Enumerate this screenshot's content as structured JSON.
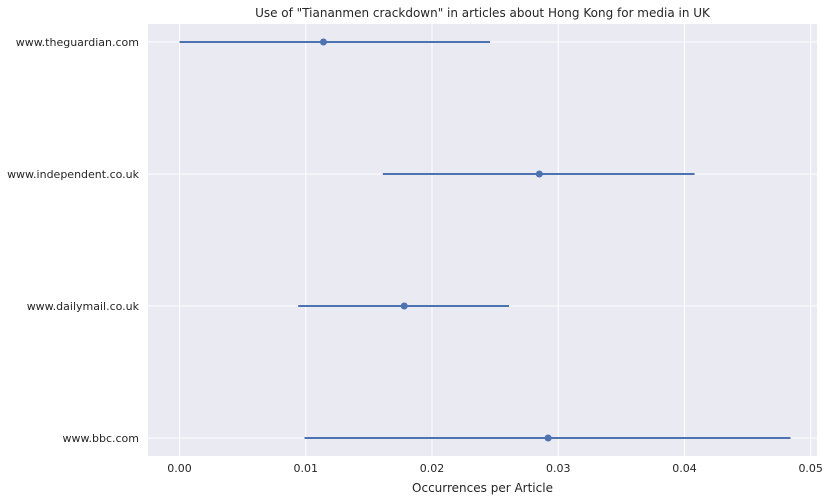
{
  "chart_data": {
    "type": "scatter",
    "subtype": "point-with-horizontal-error-bars",
    "title": "Use of \"Tiananmen crackdown\" in articles about Hong Kong for media in UK",
    "xlabel": "Occurrences per Article",
    "ylabel": "",
    "xlim": [
      -0.0025,
      0.0505
    ],
    "xticks": [
      0.0,
      0.01,
      0.02,
      0.03,
      0.04,
      0.05
    ],
    "xtick_labels": [
      "0.00",
      "0.01",
      "0.02",
      "0.03",
      "0.04",
      "0.05"
    ],
    "categories": [
      "www.theguardian.com",
      "www.independent.co.uk",
      "www.dailymail.co.uk",
      "www.bbc.com"
    ],
    "values": [
      0.0114,
      0.0285,
      0.0178,
      0.0292
    ],
    "error_low": [
      0.0,
      0.0161,
      0.0094,
      0.0099
    ],
    "error_high": [
      0.0246,
      0.0408,
      0.0261,
      0.0484
    ],
    "grid": true,
    "colors": {
      "background": "#eaeaf2",
      "grid": "#ffffff",
      "series": "#4c72b0",
      "text": "#262626"
    }
  }
}
